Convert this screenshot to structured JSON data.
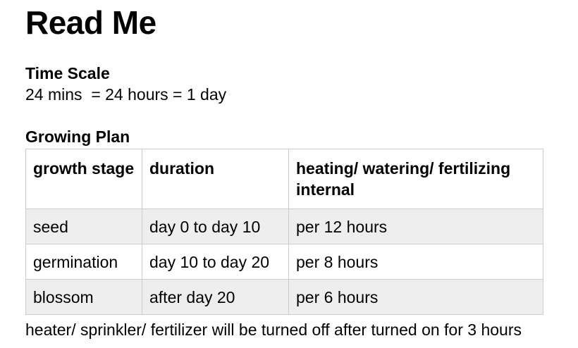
{
  "title": "Read Me",
  "time_scale": {
    "heading": "Time Scale",
    "text": "24 mins  = 24 hours = 1 day"
  },
  "growing_plan": {
    "heading": "Growing Plan",
    "columns": [
      "growth stage",
      "duration",
      "heating/ watering/ fertilizing internal"
    ],
    "rows": [
      [
        "seed",
        "day 0 to day 10",
        "per 12 hours"
      ],
      [
        "germination",
        "day 10 to day 20",
        "per 8 hours"
      ],
      [
        "blossom",
        "after day 20",
        "per 6 hours"
      ]
    ]
  },
  "footer_note": "heater/ sprinkler/ fertilizer will be turned off after turned on for 3 hours"
}
